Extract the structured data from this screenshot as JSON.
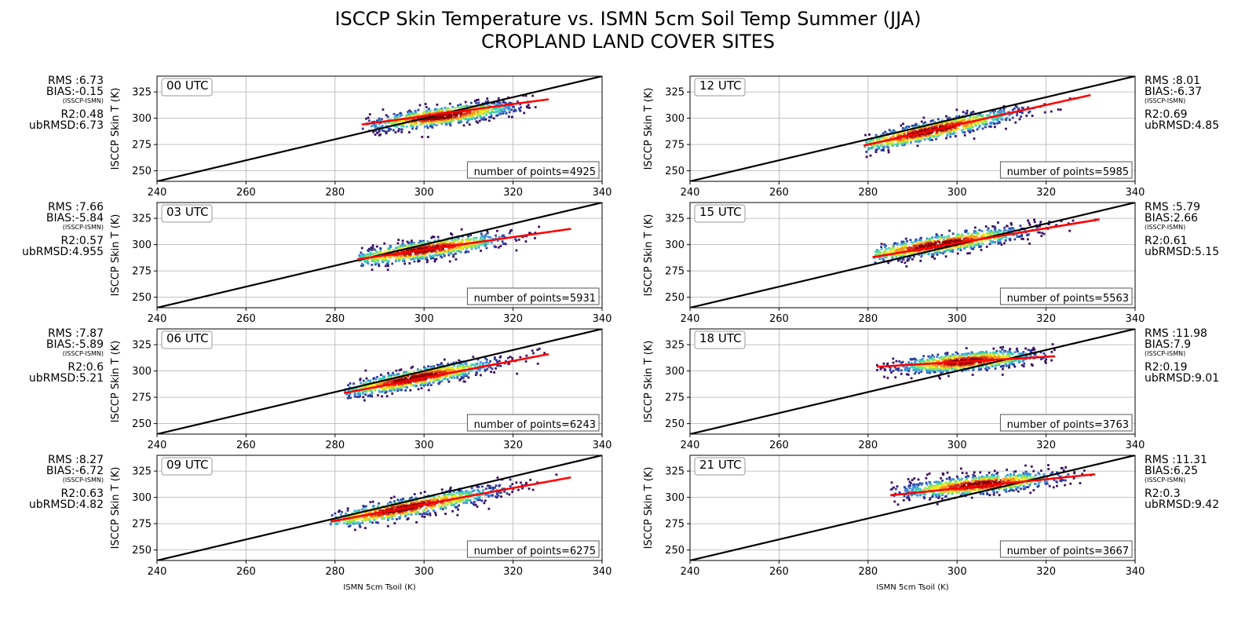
{
  "title_lines": [
    "ISCCP Skin Temperature vs. ISMN 5cm Soil Temp Summer (JJA)",
    "CROPLAND LAND COVER SITES"
  ],
  "colors": {
    "one_to_one_line": "#000000",
    "fit_line": "#ff0000",
    "grid": "#b0b0b0",
    "density_colormap": [
      "#3b0f5f",
      "#2c3e9e",
      "#3a8fd4",
      "#3fd1b3",
      "#9ee24a",
      "#f5e61e",
      "#f29a1b",
      "#d7301f",
      "#8b0000"
    ]
  },
  "chart_data": [
    {
      "type": "scatter",
      "style": "density-colored scatter with 1:1 line and least-squares fit line",
      "panel_label": "00 UTC",
      "column": "left",
      "xlabel": "",
      "ylabel": "ISCCP Skin T (K)",
      "xlim": [
        240,
        340
      ],
      "ylim": [
        240,
        340
      ],
      "xticks": [
        "240",
        "260",
        "280",
        "300",
        "320",
        "340"
      ],
      "yticks": [
        "250",
        "275",
        "300",
        "325"
      ],
      "grid": true,
      "n_points_label": "number of points=4925",
      "stats": {
        "rms": "RMS :6.73",
        "bias": "BIAS:-0.15",
        "bias_note": "(ISSCP-ISMN)",
        "r2": "R2:0.48",
        "ubrmsd": "ubRMSD:6.73"
      },
      "cloud": {
        "x_range": [
          286,
          328
        ],
        "center": [
          304,
          302
        ],
        "slope": 0.55
      },
      "fit_line": {
        "x": [
          286,
          328
        ],
        "y": [
          294,
          318
        ]
      },
      "one_to_one_line": {
        "x": [
          240,
          340
        ],
        "y": [
          240,
          340
        ]
      }
    },
    {
      "type": "scatter",
      "style": "density-colored scatter with 1:1 line and least-squares fit line",
      "panel_label": "03 UTC",
      "column": "left",
      "xlabel": "",
      "ylabel": "ISCCP Skin T (K)",
      "xlim": [
        240,
        340
      ],
      "ylim": [
        240,
        340
      ],
      "xticks": [
        "240",
        "260",
        "280",
        "300",
        "320",
        "340"
      ],
      "yticks": [
        "250",
        "275",
        "300",
        "325"
      ],
      "grid": true,
      "n_points_label": "number of points=5931",
      "stats": {
        "rms": "RMS :7.66",
        "bias": "BIAS:-5.84",
        "bias_note": "(ISSCP-ISMN)",
        "r2": "R2:0.57",
        "ubrmsd": "ubRMSD:4.955"
      },
      "cloud": {
        "x_range": [
          285,
          333
        ],
        "center": [
          300,
          295
        ],
        "slope": 0.6
      },
      "fit_line": {
        "x": [
          285,
          333
        ],
        "y": [
          286,
          315
        ]
      },
      "one_to_one_line": {
        "x": [
          240,
          340
        ],
        "y": [
          240,
          340
        ]
      }
    },
    {
      "type": "scatter",
      "style": "density-colored scatter with 1:1 line and least-squares fit line",
      "panel_label": "06 UTC",
      "column": "left",
      "xlabel": "",
      "ylabel": "ISCCP Skin T (K)",
      "xlim": [
        240,
        340
      ],
      "ylim": [
        240,
        340
      ],
      "xticks": [
        "240",
        "260",
        "280",
        "300",
        "320",
        "340"
      ],
      "yticks": [
        "250",
        "275",
        "300",
        "325"
      ],
      "grid": true,
      "n_points_label": "number of points=6243",
      "stats": {
        "rms": "RMS :7.87",
        "bias": "BIAS:-5.89",
        "bias_note": "(ISSCP-ISMN)",
        "r2": "R2:0.6",
        "ubrmsd": "ubRMSD:5.21"
      },
      "cloud": {
        "x_range": [
          282,
          328
        ],
        "center": [
          298,
          293
        ],
        "slope": 0.8
      },
      "fit_line": {
        "x": [
          282,
          328
        ],
        "y": [
          279,
          316
        ]
      },
      "one_to_one_line": {
        "x": [
          240,
          340
        ],
        "y": [
          240,
          340
        ]
      }
    },
    {
      "type": "scatter",
      "style": "density-colored scatter with 1:1 line and least-squares fit line",
      "panel_label": "09 UTC",
      "column": "left",
      "xlabel": "ISMN 5cm Tsoil (K)",
      "ylabel": "ISCCP Skin T (K)",
      "xlim": [
        240,
        340
      ],
      "ylim": [
        240,
        340
      ],
      "xticks": [
        "240",
        "260",
        "280",
        "300",
        "320",
        "340"
      ],
      "yticks": [
        "250",
        "275",
        "300",
        "325"
      ],
      "grid": true,
      "n_points_label": "number of points=6275",
      "stats": {
        "rms": "RMS :8.27",
        "bias": "BIAS:-6.72",
        "bias_note": "(ISSCP-ISMN)",
        "r2": "R2:0.63",
        "ubrmsd": "ubRMSD:4.82"
      },
      "cloud": {
        "x_range": [
          279,
          333
        ],
        "center": [
          296,
          290
        ],
        "slope": 0.78
      },
      "fit_line": {
        "x": [
          279,
          333
        ],
        "y": [
          277,
          319
        ]
      },
      "one_to_one_line": {
        "x": [
          240,
          340
        ],
        "y": [
          240,
          340
        ]
      }
    },
    {
      "type": "scatter",
      "style": "density-colored scatter with 1:1 line and least-squares fit line",
      "panel_label": "12 UTC",
      "column": "right",
      "xlabel": "",
      "ylabel": "ISCCP Skin T (K)",
      "xlim": [
        240,
        340
      ],
      "ylim": [
        240,
        340
      ],
      "xticks": [
        "240",
        "260",
        "280",
        "300",
        "320",
        "340"
      ],
      "yticks": [
        "250",
        "275",
        "300",
        "325"
      ],
      "grid": true,
      "n_points_label": "number of points=5985",
      "stats": {
        "rms": "RMS :8.01",
        "bias": "BIAS:-6.37",
        "bias_note": "(ISSCP-ISMN)",
        "r2": "R2:0.69",
        "ubrmsd": "ubRMSD:4.85"
      },
      "cloud": {
        "x_range": [
          279,
          330
        ],
        "center": [
          294,
          288
        ],
        "slope": 0.9
      },
      "fit_line": {
        "x": [
          279,
          330
        ],
        "y": [
          274,
          322
        ]
      },
      "one_to_one_line": {
        "x": [
          240,
          340
        ],
        "y": [
          240,
          340
        ]
      }
    },
    {
      "type": "scatter",
      "style": "density-colored scatter with 1:1 line and least-squares fit line",
      "panel_label": "15 UTC",
      "column": "right",
      "xlabel": "",
      "ylabel": "ISCCP Skin T (K)",
      "xlim": [
        240,
        340
      ],
      "ylim": [
        240,
        340
      ],
      "xticks": [
        "240",
        "260",
        "280",
        "300",
        "320",
        "340"
      ],
      "yticks": [
        "250",
        "275",
        "300",
        "325"
      ],
      "grid": true,
      "n_points_label": "number of points=5563",
      "stats": {
        "rms": "RMS :5.79",
        "bias": "BIAS:2.66",
        "bias_note": "(ISSCP-ISMN)",
        "r2": "R2:0.61",
        "ubrmsd": "ubRMSD:5.15"
      },
      "cloud": {
        "x_range": [
          281,
          332
        ],
        "center": [
          296,
          300
        ],
        "slope": 0.65
      },
      "fit_line": {
        "x": [
          281,
          332
        ],
        "y": [
          288,
          324
        ]
      },
      "one_to_one_line": {
        "x": [
          240,
          340
        ],
        "y": [
          240,
          340
        ]
      }
    },
    {
      "type": "scatter",
      "style": "density-colored scatter with 1:1 line and least-squares fit line",
      "panel_label": "18 UTC",
      "column": "right",
      "xlabel": "",
      "ylabel": "ISCCP Skin T (K)",
      "xlim": [
        240,
        340
      ],
      "ylim": [
        240,
        340
      ],
      "xticks": [
        "240",
        "260",
        "280",
        "300",
        "320",
        "340"
      ],
      "yticks": [
        "250",
        "275",
        "300",
        "325"
      ],
      "grid": true,
      "n_points_label": "number of points=3763",
      "stats": {
        "rms": "RMS :11.98",
        "bias": "BIAS:7.9",
        "bias_note": "(ISSCP-ISMN)",
        "r2": "R2:0.19",
        "ubrmsd": "ubRMSD:9.01"
      },
      "cloud": {
        "x_range": [
          282,
          322
        ],
        "center": [
          302,
          309
        ],
        "slope": 0.35
      },
      "fit_line": {
        "x": [
          282,
          322
        ],
        "y": [
          304,
          314
        ]
      },
      "one_to_one_line": {
        "x": [
          240,
          340
        ],
        "y": [
          240,
          340
        ]
      }
    },
    {
      "type": "scatter",
      "style": "density-colored scatter with 1:1 line and least-squares fit line",
      "panel_label": "21 UTC",
      "column": "right",
      "xlabel": "ISMN 5cm Tsoil (K)",
      "ylabel": "ISCCP Skin T (K)",
      "xlim": [
        240,
        340
      ],
      "ylim": [
        240,
        340
      ],
      "xticks": [
        "240",
        "260",
        "280",
        "300",
        "320",
        "340"
      ],
      "yticks": [
        "250",
        "275",
        "300",
        "325"
      ],
      "grid": true,
      "n_points_label": "number of points=3667",
      "stats": {
        "rms": "RMS :11.31",
        "bias": "BIAS:6.25",
        "bias_note": "(ISSCP-ISMN)",
        "r2": "R2:0.3",
        "ubrmsd": "ubRMSD:9.42"
      },
      "cloud": {
        "x_range": [
          285,
          331
        ],
        "center": [
          305,
          312
        ],
        "slope": 0.4
      },
      "fit_line": {
        "x": [
          285,
          331
        ],
        "y": [
          302,
          322
        ]
      },
      "one_to_one_line": {
        "x": [
          240,
          340
        ],
        "y": [
          240,
          340
        ]
      }
    }
  ]
}
